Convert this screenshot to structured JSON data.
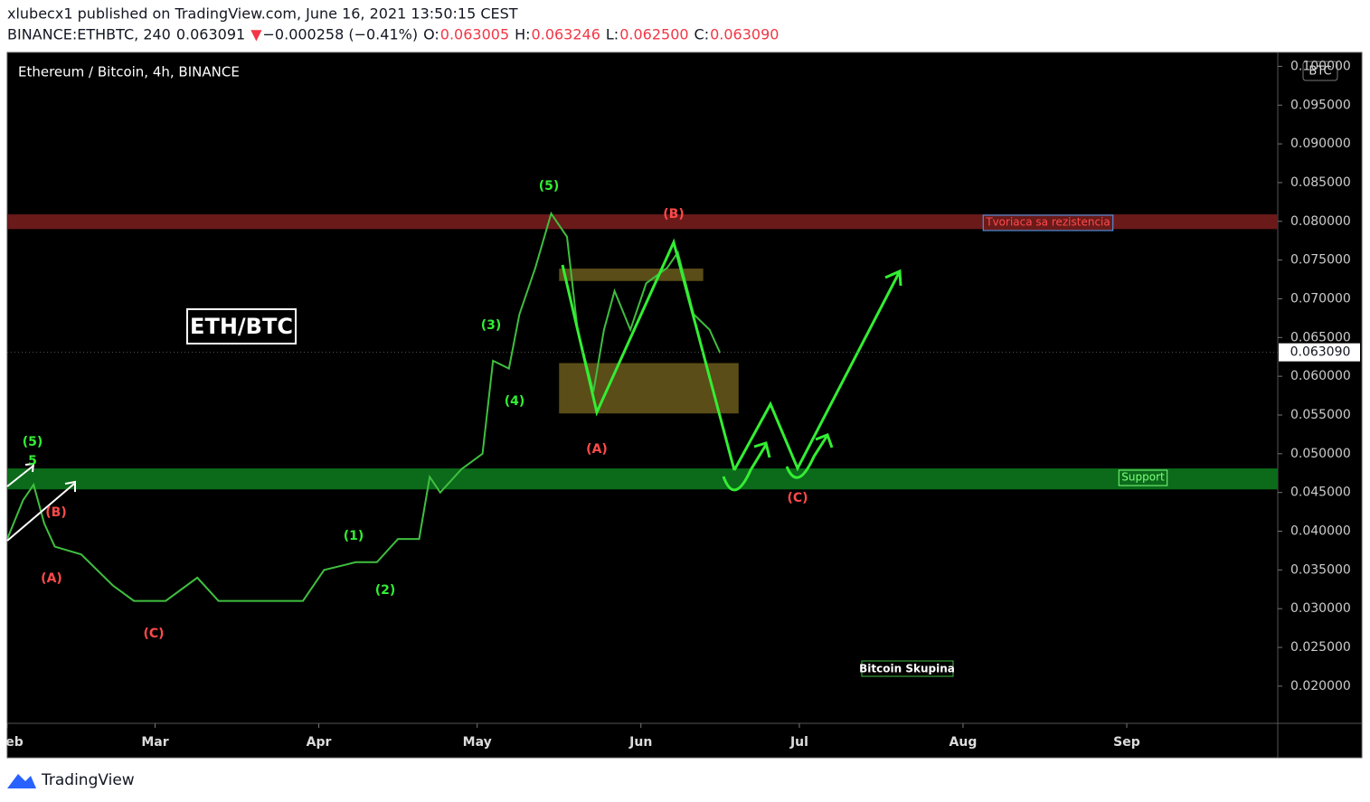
{
  "chart_data": {
    "type": "line",
    "header": {
      "publisher": "xlubecx1 published on TradingView.com, June 16, 2021 13:50:15 CEST",
      "symbol": "BINANCE:ETHBTC, 240",
      "last": "0.063091",
      "arrow": "▼",
      "change": "−0.000258 (−0.41%)",
      "open_label": "O:",
      "open": "0.063005",
      "high_label": "H:",
      "high": "0.063246",
      "low_label": "L:",
      "low": "0.062500",
      "close_label": "C:",
      "close": "0.063090"
    },
    "title": "Ethereum / Bitcoin, 4h, BINANCE",
    "currency": "BTC",
    "pair_label": "ETH/BTC",
    "note": "Bitcoin Skupina",
    "footer": "TradingView",
    "color": "#3fbf3f",
    "x": [
      0,
      3,
      5,
      7,
      9,
      14,
      20,
      24,
      30,
      36,
      40,
      50,
      56,
      60,
      66,
      70,
      74,
      78,
      80,
      82,
      86,
      90,
      92,
      95,
      97,
      100,
      103,
      106,
      108,
      111,
      113,
      115,
      118,
      121,
      125,
      127,
      130,
      133,
      135
    ],
    "values": [
      0.039,
      0.044,
      0.046,
      0.041,
      0.038,
      0.037,
      0.033,
      0.031,
      0.031,
      0.034,
      0.031,
      0.031,
      0.031,
      0.035,
      0.036,
      0.036,
      0.039,
      0.039,
      0.047,
      0.045,
      0.048,
      0.05,
      0.062,
      0.061,
      0.068,
      0.074,
      0.081,
      0.078,
      0.066,
      0.058,
      0.066,
      0.071,
      0.066,
      0.072,
      0.074,
      0.076,
      0.068,
      0.066,
      0.063
    ],
    "xlim": [
      0,
      240.6
    ],
    "xticks": [
      {
        "value": 0,
        "label": "eb"
      },
      {
        "value": 28,
        "label": "Mar"
      },
      {
        "value": 59,
        "label": "Apr"
      },
      {
        "value": 89,
        "label": "May"
      },
      {
        "value": 120,
        "label": "Jun"
      },
      {
        "value": 150,
        "label": "Jul"
      },
      {
        "value": 181,
        "label": "Aug"
      },
      {
        "value": 212,
        "label": "Sep"
      }
    ],
    "ylim": [
      0.0152,
      0.1018
    ],
    "yticks": [
      {
        "value": 0.1,
        "label": "0.100000"
      },
      {
        "value": 0.095,
        "label": "0.095000"
      },
      {
        "value": 0.09,
        "label": "0.090000"
      },
      {
        "value": 0.085,
        "label": "0.085000"
      },
      {
        "value": 0.08,
        "label": "0.080000"
      },
      {
        "value": 0.075,
        "label": "0.075000"
      },
      {
        "value": 0.07,
        "label": "0.070000"
      },
      {
        "value": 0.065,
        "label": "0.065000"
      },
      {
        "value": 0.06,
        "label": "0.060000"
      },
      {
        "value": 0.055,
        "label": "0.055000"
      },
      {
        "value": 0.05,
        "label": "0.050000"
      },
      {
        "value": 0.045,
        "label": "0.045000"
      },
      {
        "value": 0.04,
        "label": "0.040000"
      },
      {
        "value": 0.035,
        "label": "0.035000"
      },
      {
        "value": 0.03,
        "label": "0.030000"
      },
      {
        "value": 0.025,
        "label": "0.025000"
      },
      {
        "value": 0.02,
        "label": "0.020000"
      }
    ],
    "last_price": 0.06309,
    "zones": [
      {
        "ylim": [
          0.079,
          0.0809
        ],
        "color": "#6b1a1a",
        "label": "Tvoriaca sa rezistencia",
        "label_color": "#ff4a4a"
      },
      {
        "ylim": [
          0.0454,
          0.0481
        ],
        "color": "#0b6b1a",
        "label": "Support",
        "label_color": "#7dff7d"
      },
      {
        "ylim": [
          0.0723,
          0.0739
        ],
        "xlim": [
          104.5,
          131.8
        ],
        "color": "#6b5a1c"
      },
      {
        "ylim": [
          0.0552,
          0.0617
        ],
        "xlim": [
          104.5,
          138.5
        ],
        "color": "#6b5a1c"
      }
    ],
    "annotations": [
      {
        "text": "(5)",
        "color": "#33ee33"
      },
      {
        "text": "5",
        "color": "#33ee33"
      },
      {
        "text": "(B)",
        "color": "#ff4a4a"
      },
      {
        "text": "(A)",
        "color": "#ff4a4a"
      },
      {
        "text": "(C)",
        "color": "#ff4a4a"
      },
      {
        "text": "(1)",
        "color": "#33ee33"
      },
      {
        "text": "(2)",
        "color": "#33ee33"
      },
      {
        "text": "(3)",
        "color": "#33ee33"
      },
      {
        "text": "(4)",
        "color": "#33ee33"
      },
      {
        "text": "(5)",
        "color": "#33ee33"
      },
      {
        "text": "(A)",
        "color": "#ff4a4a"
      },
      {
        "text": "(B)",
        "color": "#ff4a4a"
      },
      {
        "text": "(C)",
        "color": "#ff4a4a"
      }
    ]
  }
}
